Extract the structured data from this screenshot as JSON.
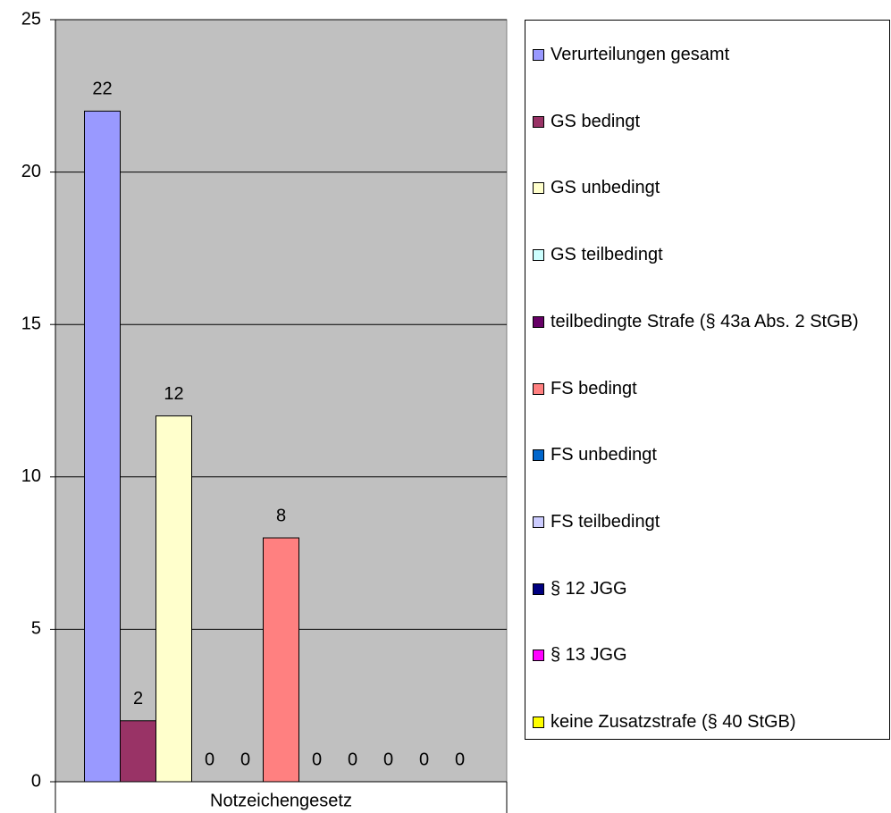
{
  "chart_data": {
    "type": "bar",
    "categories": [
      "Notzeichengesetz"
    ],
    "series": [
      {
        "name": "Verurteilungen gesamt",
        "color": "#9999ff",
        "values": [
          22
        ]
      },
      {
        "name": "GS bedingt",
        "color": "#993366",
        "values": [
          2
        ]
      },
      {
        "name": "GS unbedingt",
        "color": "#ffffcc",
        "values": [
          12
        ]
      },
      {
        "name": "GS teilbedingt",
        "color": "#ccffff",
        "values": [
          0
        ]
      },
      {
        "name": "teilbedingte Strafe (§ 43a Abs. 2 StGB)",
        "color": "#660066",
        "values": [
          0
        ]
      },
      {
        "name": "FS bedingt",
        "color": "#ff8080",
        "values": [
          8
        ]
      },
      {
        "name": "FS unbedingt",
        "color": "#0066cc",
        "values": [
          0
        ]
      },
      {
        "name": "FS teilbedingt",
        "color": "#ccccff",
        "values": [
          0
        ]
      },
      {
        "name": "§ 12 JGG",
        "color": "#000080",
        "values": [
          0
        ]
      },
      {
        "name": "§ 13 JGG",
        "color": "#ff00ff",
        "values": [
          0
        ]
      },
      {
        "name": "keine Zusatzstrafe (§ 40 StGB)",
        "color": "#ffff00",
        "values": [
          0
        ]
      }
    ],
    "ylim": [
      0,
      25
    ],
    "yticks": [
      0,
      5,
      10,
      15,
      20,
      25
    ],
    "grid": true,
    "legend": "right",
    "plot_background": "#c0c0c0"
  }
}
